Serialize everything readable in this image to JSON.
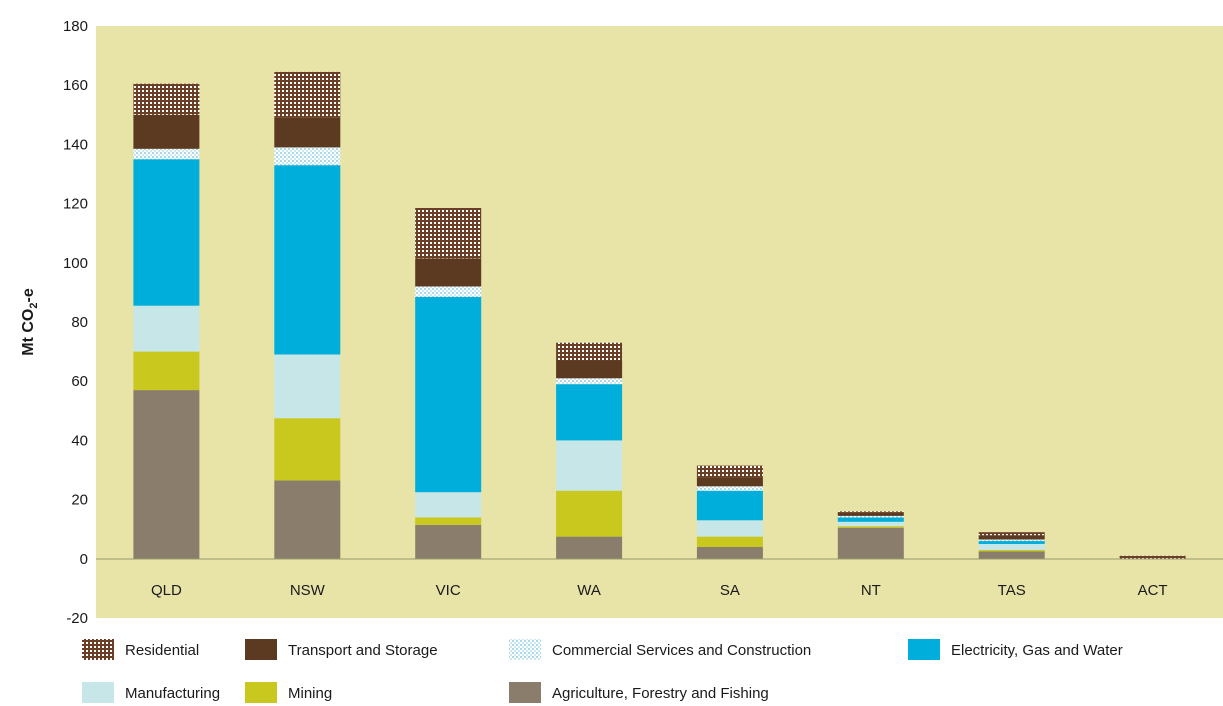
{
  "chart_data": {
    "type": "bar",
    "stacked": true,
    "ylabel": "Mt CO",
    "ylabel_subscript": "2",
    "ylabel_suffix": "-e",
    "ylim": [
      -20,
      180
    ],
    "yticks": [
      -20,
      0,
      20,
      40,
      60,
      80,
      100,
      120,
      140,
      160,
      180
    ],
    "categories": [
      "QLD",
      "NSW",
      "VIC",
      "WA",
      "SA",
      "NT",
      "TAS",
      "ACT"
    ],
    "series": [
      {
        "name": "Agriculture, Forestry and Fishing",
        "color": "#8b7d6b",
        "pattern": "solid",
        "values": [
          57,
          26.5,
          11.5,
          7.5,
          4,
          10.5,
          2.5,
          0
        ]
      },
      {
        "name": "Mining",
        "color": "#c8c81e",
        "pattern": "solid",
        "values": [
          13,
          21,
          2.5,
          15.5,
          3.5,
          0.5,
          0.5,
          0
        ]
      },
      {
        "name": "Manufacturing",
        "color": "#c6e6e8",
        "pattern": "solid",
        "values": [
          15.5,
          21.5,
          8.5,
          17,
          5.5,
          1.5,
          2,
          0
        ]
      },
      {
        "name": "Electricity, Gas and Water",
        "color": "#00aedb",
        "pattern": "solid",
        "values": [
          49.5,
          64,
          66,
          19,
          10,
          1.5,
          1,
          0
        ]
      },
      {
        "name": "Commercial Services and Construction",
        "color": "#d8eef6",
        "pattern": "grid",
        "values": [
          3.5,
          6,
          3.5,
          2,
          1.5,
          0.5,
          0.5,
          0
        ]
      },
      {
        "name": "Transport and Storage",
        "color": "#5c3a21",
        "pattern": "solid",
        "values": [
          11.5,
          10,
          9.5,
          6,
          3,
          1,
          1.5,
          0
        ]
      },
      {
        "name": "Residential",
        "color": "#6b3f26",
        "pattern": "dots",
        "values": [
          10.5,
          15.5,
          17,
          6,
          4,
          0.5,
          1,
          1
        ]
      }
    ],
    "legend": {
      "rows": [
        [
          "Residential",
          "Transport and Storage",
          "Commercial Services and Construction",
          "Electricity, Gas and Water"
        ],
        [
          "Manufacturing",
          "Mining",
          "Agriculture, Forestry and Fishing"
        ]
      ],
      "placement": "bottom"
    },
    "plot_background": "#e8e4a8",
    "grid": false
  }
}
